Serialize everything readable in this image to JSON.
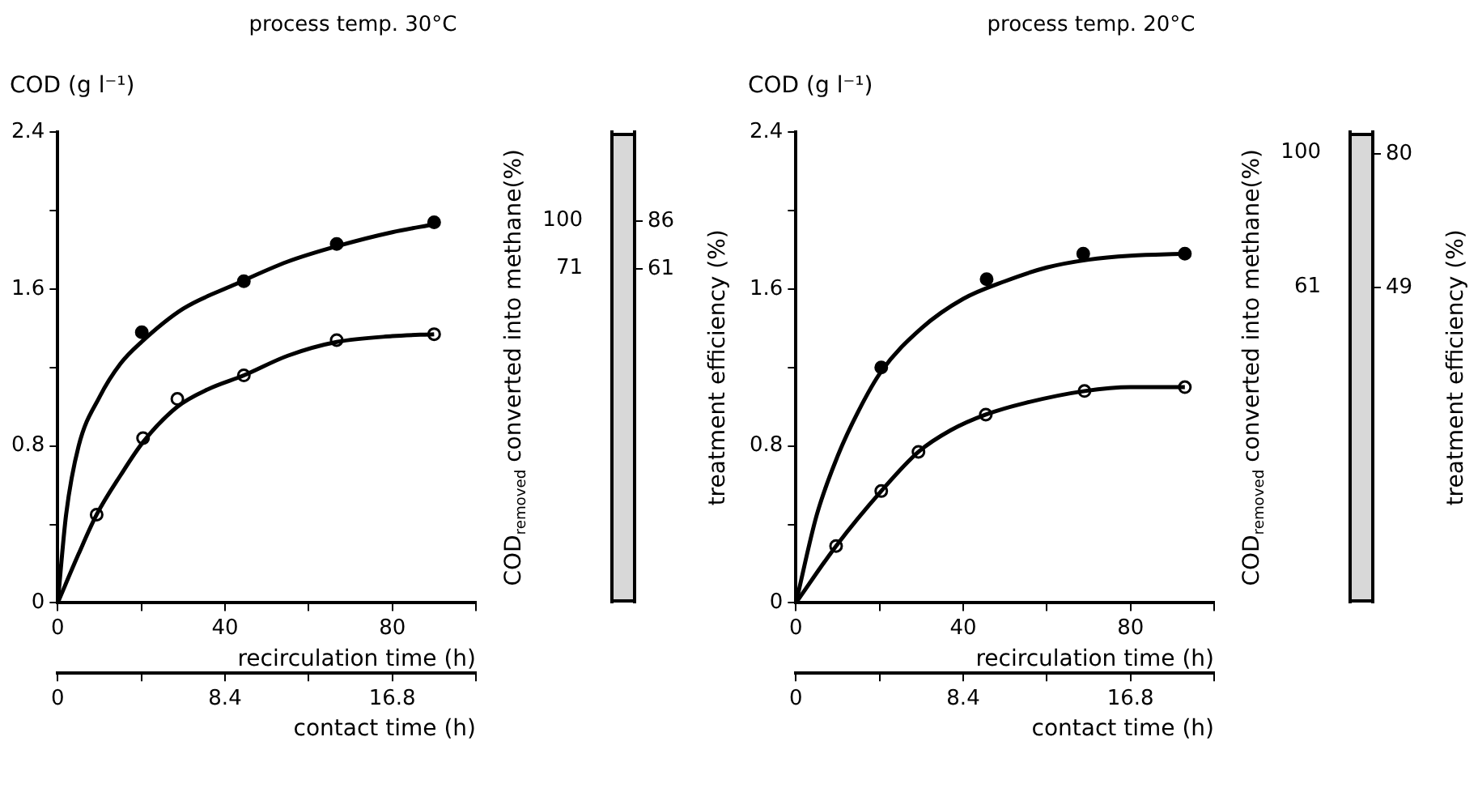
{
  "chart_data": [
    {
      "type": "line",
      "title": "process temp. 30°C",
      "ylabel": "COD (g l⁻¹)",
      "xlabel": "recirculation time (h)",
      "x2label": "contact time (h)",
      "y2label": "COD$_{removed}$ converted into methane(%)",
      "y3label": "treatment efficiency (%)",
      "xlim": [
        0,
        100
      ],
      "xticks": [
        0,
        {
          "value": 20,
          "label": null
        },
        40,
        {
          "value": 60,
          "label": null
        },
        80,
        {
          "value": 100,
          "label": null
        }
      ],
      "x2lim": [
        0,
        21
      ],
      "x2ticks": [
        0,
        {
          "value": 4.2,
          "label": null
        },
        8.4,
        {
          "value": 12.6,
          "label": null
        },
        16.8,
        {
          "value": 21,
          "label": null
        }
      ],
      "ylim": [
        0,
        2.4
      ],
      "yticks": [
        0,
        {
          "value": 0.4,
          "label": null
        },
        0.8,
        {
          "value": 1.2,
          "label": null
        },
        1.6,
        {
          "value": 2.0,
          "label": null
        },
        2.4
      ],
      "y2lim": [
        -130,
        153
      ],
      "y2ticks": [
        71,
        100
      ],
      "y3lim": [
        -112,
        132
      ],
      "y3ticks": [
        61,
        86
      ],
      "grid": false,
      "legend": false,
      "series": [
        {
          "type": "line",
          "marker": "none",
          "color": "#000000",
          "x": [
            0,
            2,
            5,
            10,
            15,
            20,
            30,
            42,
            55,
            67,
            80,
            90
          ],
          "values": [
            0,
            0.45,
            0.8,
            1.05,
            1.22,
            1.33,
            1.5,
            1.62,
            1.74,
            1.82,
            1.89,
            1.93
          ]
        },
        {
          "type": "line",
          "marker": "none",
          "color": "#000000",
          "x": [
            0,
            5,
            9.3,
            15,
            20.4,
            28.6,
            36,
            44.5,
            55,
            66.7,
            80,
            90
          ],
          "values": [
            0,
            0.25,
            0.45,
            0.65,
            0.82,
            1.0,
            1.09,
            1.16,
            1.26,
            1.33,
            1.36,
            1.37
          ]
        },
        {
          "type": "scatter",
          "marker": "circle",
          "color": "#000000",
          "x": [
            20.1,
            44.5,
            66.7,
            90
          ],
          "values": [
            1.38,
            1.64,
            1.83,
            1.94
          ]
        },
        {
          "type": "scatter",
          "marker": "circle",
          "color": "#ffffff",
          "x": [
            9.3,
            20.4,
            28.6,
            44.5,
            66.7,
            90
          ],
          "values": [
            0.45,
            0.84,
            1.04,
            1.16,
            1.34,
            1.37
          ]
        }
      ]
    },
    {
      "type": "line",
      "title": "process temp. 20°C",
      "ylabel": "COD (g l⁻¹)",
      "xlabel": "recirculation time (h)",
      "x2label": "contact time (h)",
      "y2label": "COD$_{removed}$ converted into methane(%)",
      "y3label": "treatment efficiency (%)",
      "xlim": [
        0,
        100
      ],
      "xticks": [
        0,
        {
          "value": 20,
          "label": null
        },
        40,
        {
          "value": 60,
          "label": null
        },
        80,
        {
          "value": 100,
          "label": null
        }
      ],
      "x2lim": [
        0,
        21
      ],
      "x2ticks": [
        0,
        {
          "value": 4.2,
          "label": null
        },
        8.4,
        {
          "value": 12.6,
          "label": null
        },
        16.8,
        {
          "value": 21,
          "label": null
        }
      ],
      "ylim": [
        0,
        2.4
      ],
      "yticks": [
        0,
        {
          "value": 0.4,
          "label": null
        },
        0.8,
        {
          "value": 1.2,
          "label": null
        },
        1.6,
        {
          "value": 2.0,
          "label": null
        },
        2.4
      ],
      "y2lim": [
        -31,
        106
      ],
      "y2ticks": [
        61,
        100
      ],
      "y3lim": [
        -24,
        85
      ],
      "y3ticks": [
        49,
        80
      ],
      "grid": false,
      "legend": false,
      "series": [
        {
          "type": "line",
          "marker": "none",
          "color": "#000000",
          "x": [
            0,
            5,
            10,
            15,
            20.4,
            30,
            40,
            50,
            60,
            70,
            80,
            93
          ],
          "values": [
            0,
            0.45,
            0.75,
            0.98,
            1.18,
            1.4,
            1.55,
            1.64,
            1.71,
            1.75,
            1.77,
            1.78
          ]
        },
        {
          "type": "line",
          "marker": "none",
          "color": "#000000",
          "x": [
            0,
            9.6,
            20.4,
            29.3,
            37,
            45.4,
            55,
            69,
            80,
            93
          ],
          "values": [
            0,
            0.29,
            0.57,
            0.77,
            0.88,
            0.96,
            1.02,
            1.08,
            1.1,
            1.1
          ]
        },
        {
          "type": "scatter",
          "marker": "circle",
          "color": "#000000",
          "x": [
            20.4,
            45.6,
            68.7,
            93
          ],
          "values": [
            1.2,
            1.65,
            1.78,
            1.78
          ]
        },
        {
          "type": "scatter",
          "marker": "circle",
          "color": "#ffffff",
          "x": [
            9.6,
            20.4,
            29.3,
            45.4,
            69,
            93
          ],
          "values": [
            0.29,
            0.57,
            0.77,
            0.96,
            1.08,
            1.1
          ]
        }
      ]
    }
  ]
}
